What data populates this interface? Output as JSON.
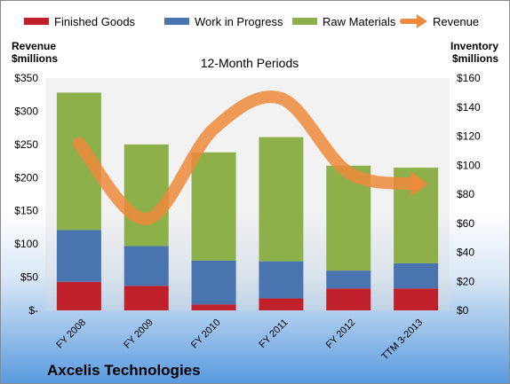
{
  "chart_data": {
    "type": "bar",
    "title": "12-Month Periods",
    "left_axis_label": [
      "Revenue",
      "$millions"
    ],
    "right_axis_label": [
      "Inventory",
      "$millions"
    ],
    "company": "Axcelis Technologies",
    "categories": [
      "FY 2008",
      "FY 2009",
      "FY 2010",
      "FY 2011",
      "FY 2012",
      "TTM 3-2013"
    ],
    "series": [
      {
        "name": "Finished Goods",
        "axis": "left",
        "stacked": true,
        "color": "#c0202a",
        "values": [
          43,
          37,
          9,
          18,
          33,
          33
        ]
      },
      {
        "name": "Work in Progress",
        "axis": "left",
        "stacked": true,
        "color": "#4a74b0",
        "values": [
          78,
          60,
          66,
          56,
          27,
          38
        ]
      },
      {
        "name": "Raw Materials",
        "axis": "left",
        "stacked": true,
        "color": "#8db04a",
        "values": [
          207,
          153,
          163,
          187,
          158,
          144
        ]
      },
      {
        "name": "Revenue",
        "axis": "right",
        "type": "line",
        "color": "#ee8a3c",
        "values": [
          115,
          63,
          125,
          146,
          95,
          87
        ]
      }
    ],
    "left_axis": {
      "min": 0,
      "max": 350,
      "ticks": [
        "$-",
        "$50",
        "$100",
        "$150",
        "$200",
        "$250",
        "$300",
        "$350"
      ]
    },
    "right_axis": {
      "min": 0,
      "max": 160,
      "ticks": [
        "$0",
        "$20",
        "$40",
        "$60",
        "$80",
        "$100",
        "$120",
        "$140",
        "$160"
      ]
    },
    "legend_position": "top",
    "grid": false
  }
}
